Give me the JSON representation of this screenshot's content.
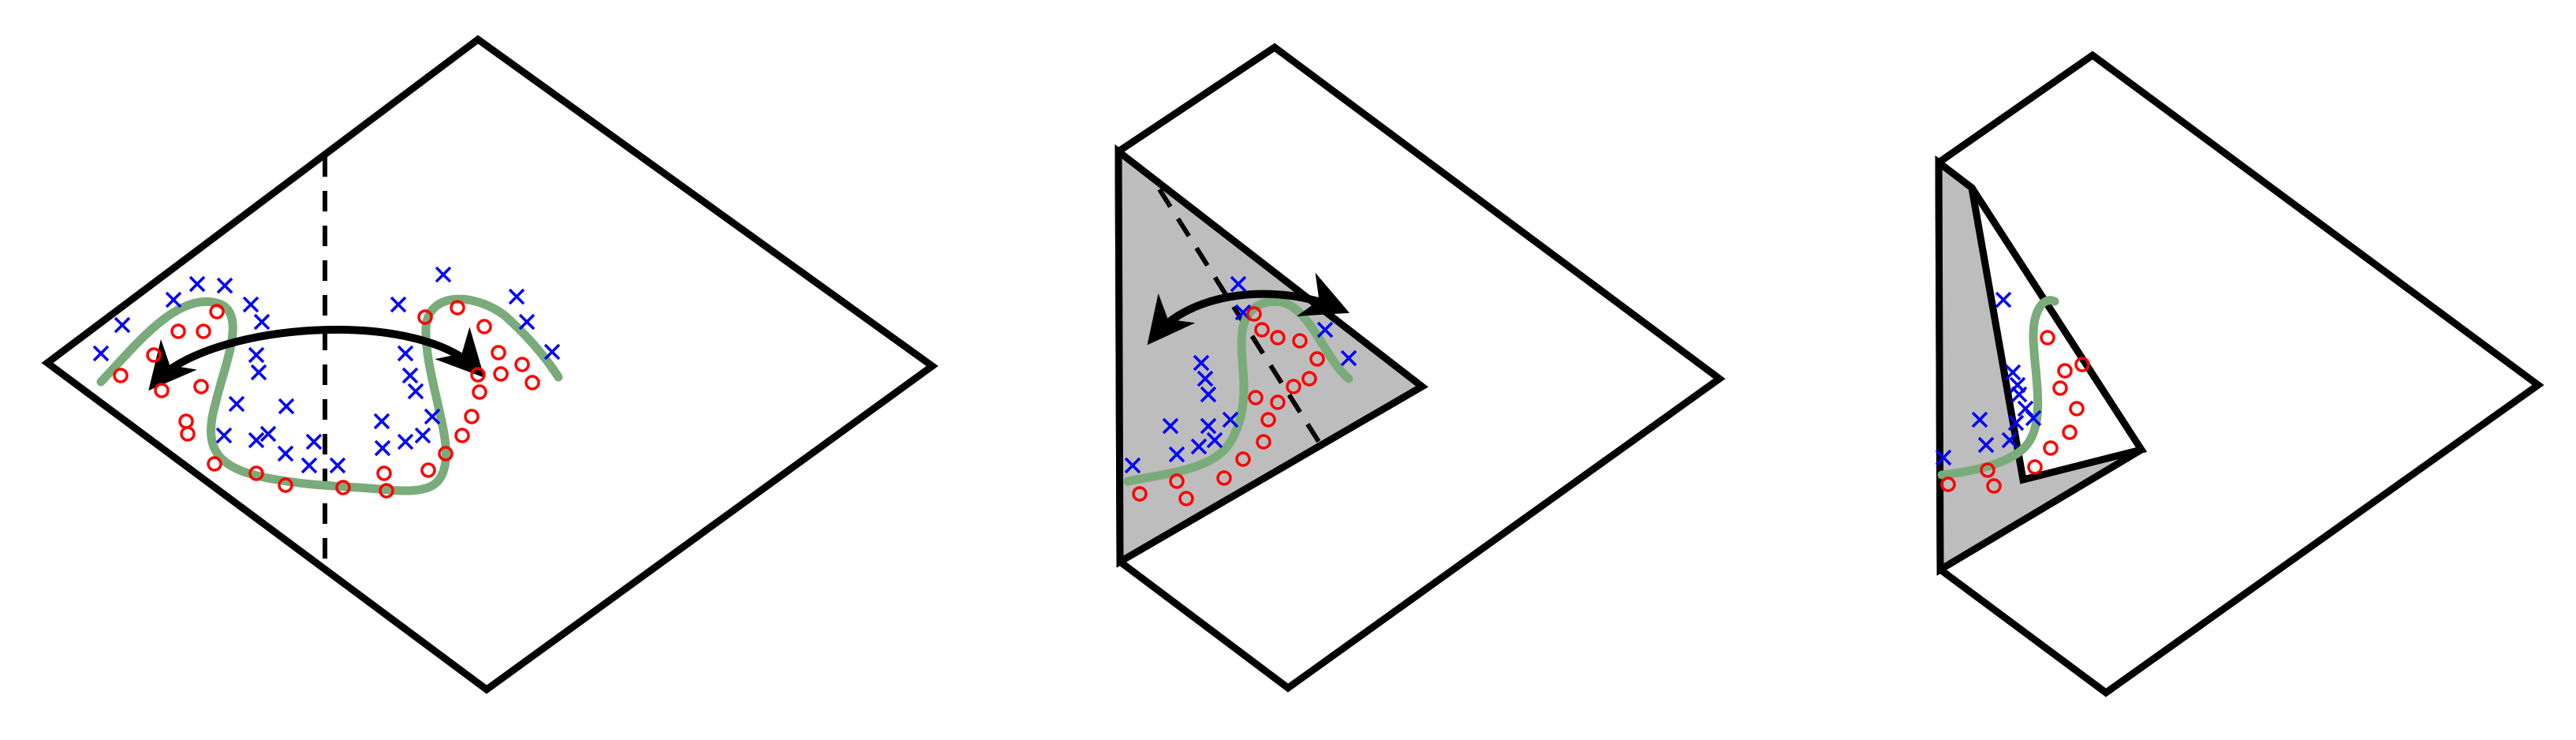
{
  "colors": {
    "outline": "#000000",
    "fold_fill": "#bdbdbd",
    "class_x": "#0000ff",
    "class_o": "#ff0000",
    "boundary": "#7aab7a",
    "background": "#ffffff"
  },
  "panels": [
    {
      "name": "flat-sheet-panel",
      "folded": false
    },
    {
      "name": "half-folded-panel",
      "folded": true
    },
    {
      "name": "double-folded-panel",
      "folded": true
    }
  ],
  "icons": {
    "x_marker": "cross-marker-icon",
    "o_marker": "circle-marker-icon",
    "fold_arrow": "double-arrow-icon"
  }
}
